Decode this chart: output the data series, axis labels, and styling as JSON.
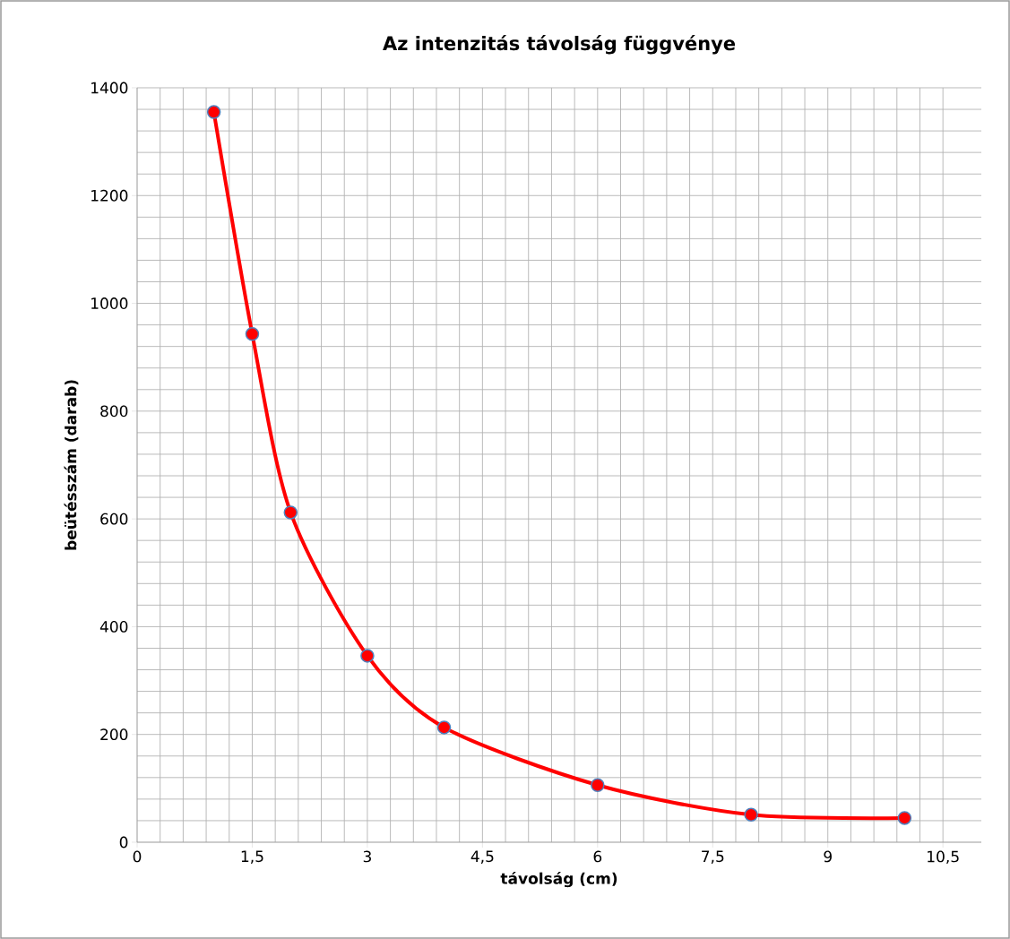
{
  "chart_data": {
    "type": "line",
    "title": "Az intenzitás távolság függvénye",
    "xlabel": "távolság (cm)",
    "ylabel": "beütésszám (darab)",
    "x": [
      1,
      1.5,
      2,
      3,
      4,
      6,
      8,
      10
    ],
    "series": [
      {
        "color": "#ff0000",
        "values": [
          1355,
          943,
          612,
          346,
          213,
          106,
          51,
          45
        ]
      }
    ],
    "xlim": [
      0,
      11
    ],
    "ylim": [
      0,
      1400
    ],
    "xticks": [
      0,
      {
        "value": 1.5,
        "label": "1,5"
      },
      3,
      {
        "value": 4.5,
        "label": "4,5"
      },
      6,
      {
        "value": 7.5,
        "label": "7,5"
      },
      9,
      {
        "value": 10.5,
        "label": "10,5"
      }
    ],
    "yticks": [
      0,
      200,
      400,
      600,
      800,
      1000,
      1200,
      1400
    ],
    "grid": true,
    "marker": "circle",
    "line_style": "solid"
  }
}
